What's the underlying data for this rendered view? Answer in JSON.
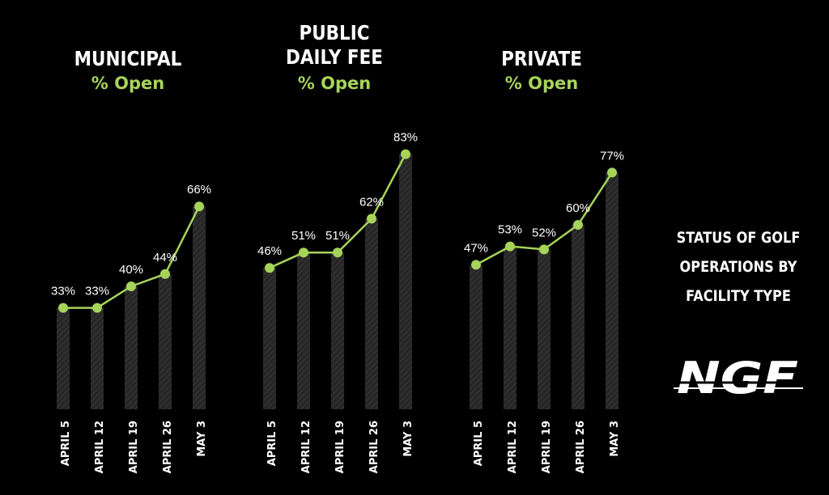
{
  "colors": {
    "background": "#000000",
    "accent": "#a6d45a",
    "bar": "#2b2b2b",
    "text": "#ffffff"
  },
  "side_title": [
    "STATUS OF GOLF",
    "OPERATIONS BY",
    "FACILITY TYPE"
  ],
  "logo": {
    "text": "NGF"
  },
  "chart_data": [
    {
      "type": "bar",
      "title": [
        "MUNICIPAL"
      ],
      "subtitle": "% Open",
      "categories": [
        "APRIL 5",
        "APRIL 12",
        "APRIL 19",
        "APRIL 26",
        "MAY 3"
      ],
      "values": [
        33,
        33,
        40,
        44,
        66
      ],
      "labels": [
        "33%",
        "33%",
        "40%",
        "44%",
        "66%"
      ],
      "overlay": "line",
      "ylim": [
        0,
        100
      ]
    },
    {
      "type": "bar",
      "title": [
        "PUBLIC",
        "DAILY FEE"
      ],
      "subtitle": "% Open",
      "categories": [
        "APRIL 5",
        "APRIL 12",
        "APRIL 19",
        "APRIL 26",
        "MAY 3"
      ],
      "values": [
        46,
        51,
        51,
        62,
        83
      ],
      "labels": [
        "46%",
        "51%",
        "51%",
        "62%",
        "83%"
      ],
      "overlay": "line",
      "ylim": [
        0,
        100
      ]
    },
    {
      "type": "bar",
      "title": [
        "PRIVATE"
      ],
      "subtitle": "% Open",
      "categories": [
        "APRIL 5",
        "APRIL 12",
        "APRIL 19",
        "APRIL 26",
        "MAY 3"
      ],
      "values": [
        47,
        53,
        52,
        60,
        77
      ],
      "labels": [
        "47%",
        "53%",
        "52%",
        "60%",
        "77%"
      ],
      "overlay": "line",
      "ylim": [
        0,
        100
      ]
    }
  ]
}
